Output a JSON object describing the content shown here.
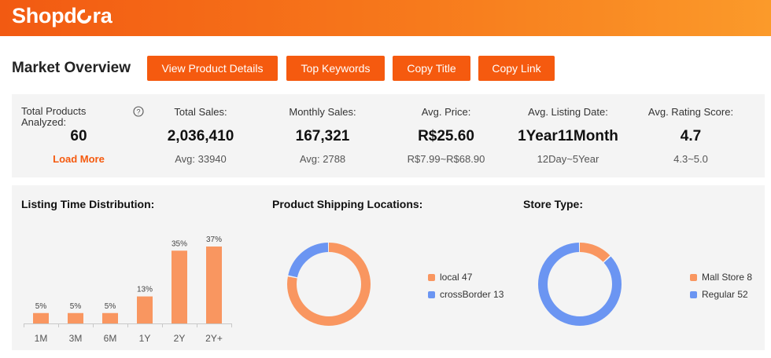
{
  "header": {
    "logo_text_pre": "Shopd",
    "logo_text_post": "ra"
  },
  "toolbar": {
    "title": "Market Overview",
    "buttons": [
      "View Product Details",
      "Top Keywords",
      "Copy Title",
      "Copy Link"
    ]
  },
  "stats": {
    "total_products": {
      "label_line1": "Total Products",
      "label_line2": "Analyzed:",
      "value": "60",
      "link": "Load More"
    },
    "total_sales": {
      "label": "Total Sales:",
      "value": "2,036,410",
      "sub": "Avg: 33940"
    },
    "monthly_sales": {
      "label": "Monthly Sales:",
      "value": "167,321",
      "sub": "Avg: 2788"
    },
    "avg_price": {
      "label": "Avg. Price:",
      "value": "R$25.60",
      "sub": "R$7.99~R$68.90"
    },
    "avg_listing_date": {
      "label": "Avg. Listing Date:",
      "value": "1Year11Month",
      "sub": "12Day~5Year"
    },
    "avg_rating": {
      "label": "Avg. Rating Score:",
      "value": "4.7",
      "sub": "4.3~5.0"
    },
    "help_icon": "question-circle-icon"
  },
  "colors": {
    "orange": "#f55a0f",
    "bar": "#f99660",
    "blue": "#6b95f2"
  },
  "chart_data": [
    {
      "type": "bar",
      "title": "Listing Time Distribution:",
      "categories": [
        "1M",
        "3M",
        "6M",
        "1Y",
        "2Y",
        "2Y+"
      ],
      "values": [
        5,
        5,
        5,
        13,
        35,
        37
      ],
      "labels": [
        "5%",
        "5%",
        "5%",
        "13%",
        "35%",
        "37%"
      ],
      "ylim": [
        0,
        37
      ]
    },
    {
      "type": "pie",
      "title": "Product Shipping Locations:",
      "slices": [
        {
          "name": "local",
          "value": 47,
          "legend": "local 47"
        },
        {
          "name": "crossBorder",
          "value": 13,
          "legend": "crossBorder 13"
        }
      ]
    },
    {
      "type": "pie",
      "title": "Store Type:",
      "slices": [
        {
          "name": "Mall Store",
          "value": 8,
          "legend": "Mall Store 8"
        },
        {
          "name": "Regular",
          "value": 52,
          "legend": "Regular 52"
        }
      ]
    }
  ]
}
